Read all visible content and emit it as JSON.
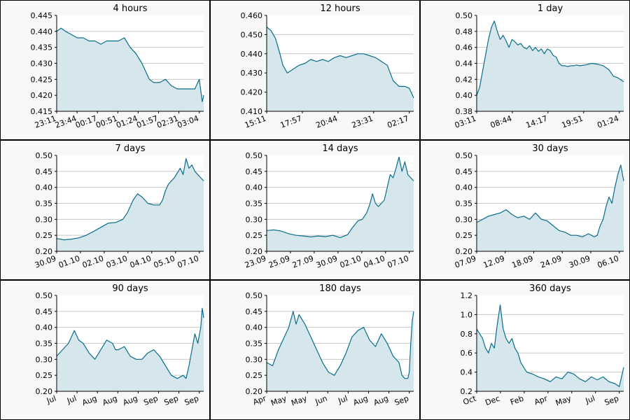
{
  "colors": {
    "line": "#0a6e8a",
    "fill": "#d6e6ed",
    "grid": "#c8c8c8",
    "plot_bg": "#ffffff",
    "panel_bg": "#f8f8f8",
    "frame": "#000000"
  },
  "chart_data": [
    {
      "type": "area",
      "title": "4 hours",
      "ylim": [
        0.415,
        0.445
      ],
      "yticks": [
        "0.445",
        "0.440",
        "0.435",
        "0.430",
        "0.425",
        "0.420",
        "0.415"
      ],
      "xticks": [
        "23:11",
        "23:44",
        "00:17",
        "00:51",
        "01:24",
        "01:57",
        "02:31",
        "03:04"
      ],
      "x": [
        0,
        3,
        6,
        10,
        14,
        18,
        22,
        26,
        30,
        34,
        38,
        42,
        46,
        50,
        54,
        58,
        60,
        63,
        66,
        70,
        74,
        78,
        82,
        86,
        90,
        94,
        97,
        99,
        100
      ],
      "y": [
        0.44,
        0.441,
        0.44,
        0.439,
        0.438,
        0.438,
        0.437,
        0.437,
        0.436,
        0.437,
        0.437,
        0.437,
        0.438,
        0.435,
        0.433,
        0.43,
        0.428,
        0.425,
        0.424,
        0.424,
        0.425,
        0.423,
        0.422,
        0.422,
        0.422,
        0.422,
        0.425,
        0.418,
        0.42
      ],
      "grid": true
    },
    {
      "type": "area",
      "title": "12 hours",
      "ylim": [
        0.41,
        0.46
      ],
      "yticks": [
        "0.460",
        "0.450",
        "0.440",
        "0.430",
        "0.420",
        "0.410"
      ],
      "xticks": [
        "15:11",
        "17:57",
        "20:44",
        "23:31",
        "02:17"
      ],
      "x": [
        0,
        3,
        6,
        9,
        11,
        14,
        18,
        22,
        26,
        30,
        34,
        38,
        42,
        46,
        50,
        54,
        58,
        62,
        66,
        70,
        74,
        78,
        82,
        86,
        90,
        94,
        97,
        100
      ],
      "y": [
        0.454,
        0.452,
        0.448,
        0.44,
        0.434,
        0.43,
        0.432,
        0.434,
        0.435,
        0.437,
        0.436,
        0.437,
        0.436,
        0.438,
        0.439,
        0.438,
        0.439,
        0.44,
        0.44,
        0.439,
        0.438,
        0.436,
        0.434,
        0.426,
        0.423,
        0.423,
        0.422,
        0.417
      ],
      "grid": true
    },
    {
      "type": "area",
      "title": "1 day",
      "ylim": [
        0.38,
        0.5
      ],
      "yticks": [
        "0.50",
        "0.48",
        "0.46",
        "0.44",
        "0.42",
        "0.40",
        "0.38"
      ],
      "xticks": [
        "03:11",
        "08:44",
        "14:17",
        "19:51",
        "01:24"
      ],
      "x": [
        0,
        2,
        4,
        6,
        8,
        10,
        12,
        14,
        16,
        18,
        20,
        22,
        24,
        26,
        28,
        30,
        32,
        34,
        36,
        38,
        40,
        42,
        44,
        46,
        48,
        50,
        52,
        54,
        56,
        58,
        60,
        62,
        64,
        66,
        68,
        70,
        74,
        78,
        82,
        86,
        90,
        93,
        96,
        100
      ],
      "y": [
        0.4,
        0.41,
        0.43,
        0.45,
        0.47,
        0.485,
        0.493,
        0.48,
        0.47,
        0.475,
        0.468,
        0.46,
        0.47,
        0.467,
        0.463,
        0.465,
        0.46,
        0.458,
        0.462,
        0.456,
        0.46,
        0.455,
        0.458,
        0.452,
        0.458,
        0.456,
        0.45,
        0.448,
        0.44,
        0.437,
        0.437,
        0.436,
        0.437,
        0.437,
        0.438,
        0.437,
        0.438,
        0.44,
        0.439,
        0.437,
        0.432,
        0.424,
        0.422,
        0.417
      ],
      "grid": true
    },
    {
      "type": "area",
      "title": "7 days",
      "ylim": [
        0.2,
        0.5
      ],
      "yticks": [
        "0.50",
        "0.45",
        "0.40",
        "0.35",
        "0.30",
        "0.25",
        "0.20"
      ],
      "xticks": [
        "30.09",
        "01.10",
        "02.10",
        "03.10",
        "04.10",
        "05.10",
        "07.10"
      ],
      "x": [
        0,
        5,
        10,
        15,
        20,
        25,
        30,
        35,
        40,
        45,
        48,
        50,
        52,
        55,
        58,
        62,
        66,
        70,
        72,
        74,
        76,
        80,
        84,
        86,
        88,
        90,
        92,
        94,
        96,
        98,
        100
      ],
      "y": [
        0.24,
        0.236,
        0.238,
        0.242,
        0.25,
        0.262,
        0.275,
        0.288,
        0.29,
        0.3,
        0.32,
        0.34,
        0.36,
        0.38,
        0.37,
        0.35,
        0.345,
        0.345,
        0.36,
        0.39,
        0.41,
        0.43,
        0.46,
        0.44,
        0.49,
        0.46,
        0.47,
        0.45,
        0.44,
        0.43,
        0.42
      ],
      "grid": true
    },
    {
      "type": "area",
      "title": "14 days",
      "ylim": [
        0.2,
        0.5
      ],
      "yticks": [
        "0.50",
        "0.45",
        "0.40",
        "0.35",
        "0.30",
        "0.25",
        "0.20"
      ],
      "xticks": [
        "23.09",
        "25.09",
        "27.09",
        "30.09",
        "02.10",
        "04.10",
        "07.10"
      ],
      "x": [
        0,
        5,
        10,
        15,
        20,
        25,
        30,
        35,
        40,
        45,
        50,
        55,
        58,
        62,
        65,
        68,
        70,
        72,
        74,
        76,
        78,
        80,
        82,
        84,
        86,
        88,
        90,
        92,
        94,
        96,
        98,
        100
      ],
      "y": [
        0.265,
        0.267,
        0.263,
        0.255,
        0.25,
        0.248,
        0.245,
        0.248,
        0.246,
        0.25,
        0.243,
        0.252,
        0.272,
        0.295,
        0.3,
        0.32,
        0.345,
        0.38,
        0.35,
        0.34,
        0.35,
        0.36,
        0.4,
        0.44,
        0.43,
        0.46,
        0.495,
        0.45,
        0.48,
        0.44,
        0.43,
        0.42
      ],
      "grid": true
    },
    {
      "type": "area",
      "title": "30 days",
      "ylim": [
        0.2,
        0.5
      ],
      "yticks": [
        "0.50",
        "0.45",
        "0.40",
        "0.35",
        "0.30",
        "0.25",
        "0.20"
      ],
      "xticks": [
        "07.09",
        "12.09",
        "18.09",
        "24.09",
        "30.09",
        "06.10"
      ],
      "x": [
        0,
        4,
        8,
        12,
        16,
        20,
        24,
        28,
        32,
        36,
        40,
        44,
        48,
        52,
        56,
        60,
        64,
        68,
        72,
        76,
        80,
        82,
        84,
        86,
        88,
        90,
        92,
        94,
        96,
        98,
        100
      ],
      "y": [
        0.29,
        0.3,
        0.31,
        0.315,
        0.32,
        0.33,
        0.315,
        0.305,
        0.31,
        0.3,
        0.32,
        0.3,
        0.295,
        0.28,
        0.265,
        0.26,
        0.25,
        0.25,
        0.245,
        0.255,
        0.245,
        0.25,
        0.28,
        0.3,
        0.34,
        0.37,
        0.35,
        0.4,
        0.44,
        0.47,
        0.42
      ],
      "grid": true
    },
    {
      "type": "area",
      "title": "90 days",
      "ylim": [
        0.2,
        0.5
      ],
      "yticks": [
        "0.50",
        "0.45",
        "0.40",
        "0.35",
        "0.30",
        "0.25",
        "0.20"
      ],
      "xticks": [
        "Jul",
        "Jul",
        "Aug",
        "Aug",
        "Aug",
        "Sep",
        "Sep",
        "Sep"
      ],
      "x": [
        0,
        4,
        8,
        12,
        15,
        18,
        22,
        26,
        30,
        34,
        38,
        40,
        42,
        46,
        50,
        54,
        58,
        62,
        66,
        70,
        74,
        78,
        82,
        86,
        88,
        90,
        92,
        94,
        96,
        98,
        99,
        100
      ],
      "y": [
        0.31,
        0.33,
        0.35,
        0.39,
        0.36,
        0.35,
        0.32,
        0.3,
        0.33,
        0.36,
        0.35,
        0.33,
        0.33,
        0.34,
        0.31,
        0.3,
        0.3,
        0.32,
        0.33,
        0.31,
        0.28,
        0.25,
        0.24,
        0.25,
        0.24,
        0.28,
        0.33,
        0.38,
        0.35,
        0.4,
        0.46,
        0.43
      ],
      "grid": true
    },
    {
      "type": "area",
      "title": "180 days",
      "ylim": [
        0.2,
        0.5
      ],
      "yticks": [
        "0.50",
        "0.45",
        "0.40",
        "0.35",
        "0.30",
        "0.25",
        "0.20"
      ],
      "xticks": [
        "Apr",
        "May",
        "May",
        "Jun",
        "Jul",
        "Aug",
        "Aug",
        "Sep"
      ],
      "x": [
        0,
        4,
        8,
        12,
        15,
        18,
        20,
        22,
        26,
        30,
        34,
        38,
        42,
        46,
        50,
        54,
        58,
        62,
        66,
        70,
        74,
        78,
        82,
        86,
        90,
        92,
        94,
        96,
        97,
        98,
        99,
        100
      ],
      "y": [
        0.29,
        0.28,
        0.33,
        0.37,
        0.4,
        0.45,
        0.41,
        0.44,
        0.41,
        0.37,
        0.33,
        0.29,
        0.26,
        0.25,
        0.28,
        0.32,
        0.37,
        0.39,
        0.4,
        0.36,
        0.34,
        0.38,
        0.35,
        0.31,
        0.29,
        0.25,
        0.24,
        0.24,
        0.26,
        0.35,
        0.42,
        0.45
      ],
      "grid": true
    },
    {
      "type": "area",
      "title": "360 days",
      "ylim": [
        0.2,
        1.2
      ],
      "yticks": [
        "1.2",
        "1.0",
        "0.8",
        "0.6",
        "0.4",
        "0.2"
      ],
      "xticks": [
        "Oct",
        "Dec",
        "Feb",
        "Apr",
        "May",
        "Jul",
        "Sep"
      ],
      "x": [
        0,
        2,
        4,
        6,
        8,
        10,
        12,
        14,
        16,
        18,
        20,
        22,
        24,
        26,
        28,
        30,
        34,
        38,
        42,
        46,
        50,
        54,
        58,
        62,
        66,
        70,
        74,
        78,
        82,
        86,
        90,
        94,
        97,
        100
      ],
      "y": [
        0.85,
        0.8,
        0.75,
        0.65,
        0.6,
        0.7,
        0.65,
        0.9,
        1.1,
        0.85,
        0.75,
        0.7,
        0.75,
        0.65,
        0.6,
        0.5,
        0.4,
        0.38,
        0.35,
        0.33,
        0.3,
        0.35,
        0.33,
        0.4,
        0.38,
        0.33,
        0.3,
        0.35,
        0.32,
        0.35,
        0.3,
        0.28,
        0.25,
        0.45
      ],
      "grid": true
    }
  ]
}
